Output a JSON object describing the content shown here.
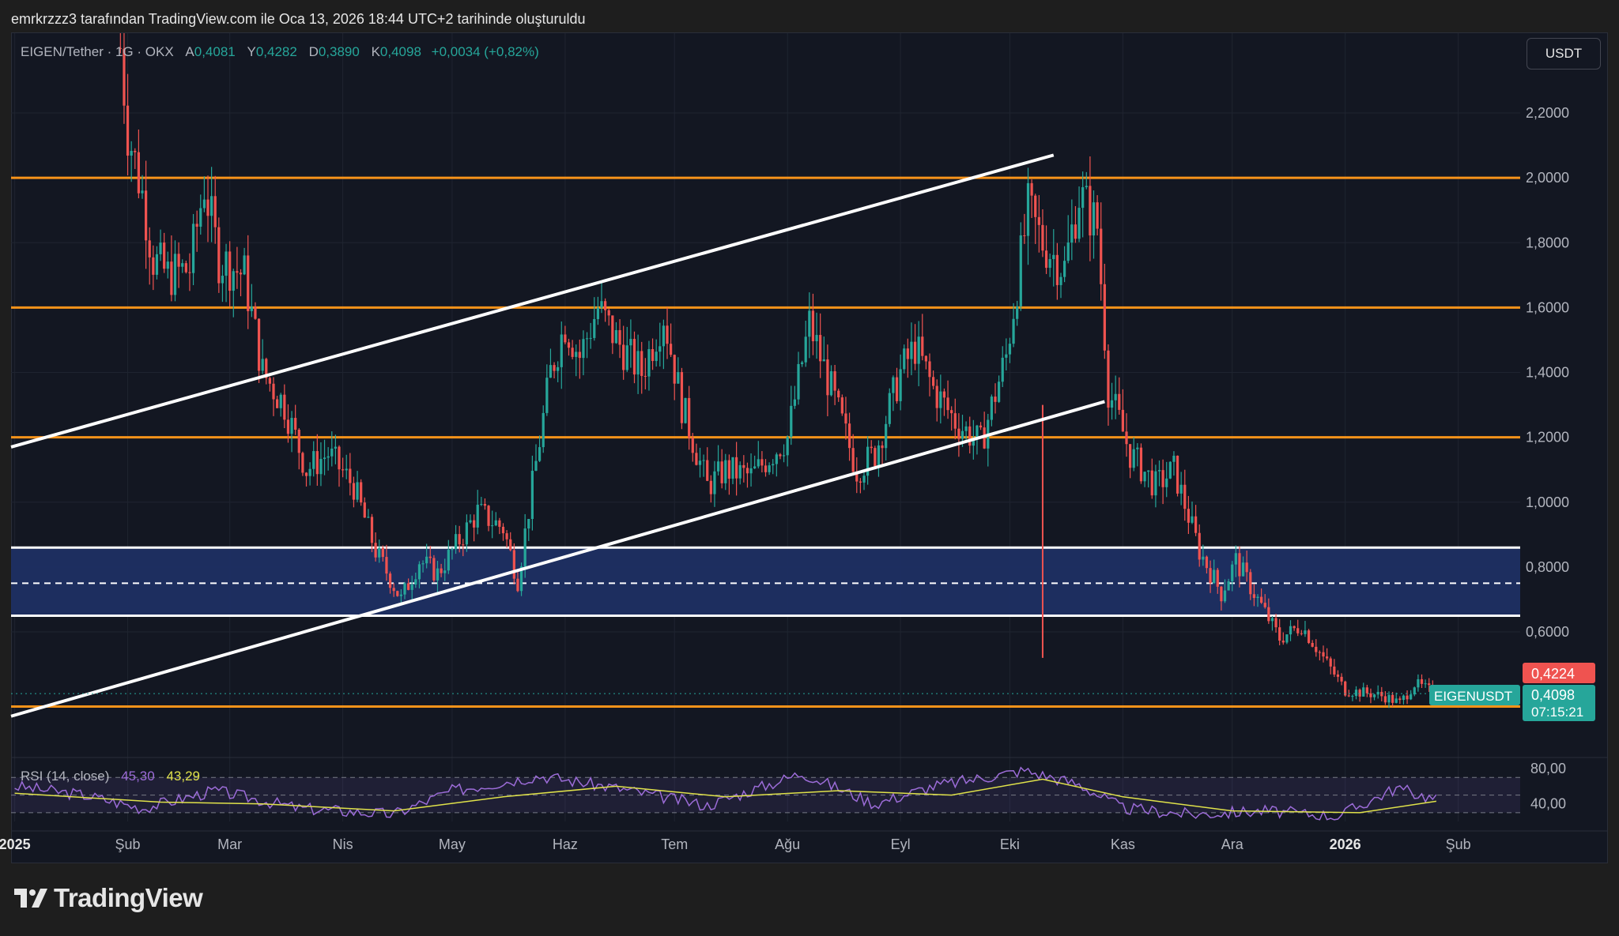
{
  "header": {
    "text": "emrkrzzz3 tarafından TradingView.com ile Oca 13, 2026 18:44 UTC+2 tarihinde oluşturuldu"
  },
  "legend": {
    "symbol": "EIGEN/Tether · 1G · OKX",
    "open_label": "A",
    "open": "0,4081",
    "high_label": "Y",
    "high": "0,4282",
    "low_label": "D",
    "low": "0,3890",
    "close_label": "K",
    "close": "0,4098",
    "change": "+0,0034 (+0,82%)"
  },
  "currency_button": "USDT",
  "rsi_legend": {
    "label": "RSI (14, close)",
    "rsi": "45,30",
    "ma": "43,29"
  },
  "price_tags": {
    "high_tag": "0,4224",
    "last_price": "0,4098",
    "countdown": "07:15:21",
    "symbol_tag": "EIGENUSDT"
  },
  "brand": {
    "logo_text": "TradingView"
  },
  "colors": {
    "up": "#26a69a",
    "down": "#ef5350",
    "horizontal_level": "#f7931a",
    "channel": "#ffffff",
    "zone": "#1e2f63",
    "rsi": "#9c6cd8",
    "rsi_ma": "#e0e24a"
  },
  "chart_data": {
    "type": "candlestick",
    "title": "",
    "xlabel": "",
    "ylabel": "",
    "ylim": [
      0.1,
      2.4
    ],
    "y_ticks": [
      "2,2000",
      "2,0000",
      "1,8000",
      "1,6000",
      "1,4000",
      "1,2000",
      "1,0000",
      "0,8000",
      "0,6000"
    ],
    "y_tick_values": [
      2.2,
      2.0,
      1.8,
      1.6,
      1.4,
      1.2,
      1.0,
      0.8,
      0.6
    ],
    "x_ticks": [
      "2025",
      "Şub",
      "Mar",
      "Nis",
      "May",
      "Haz",
      "Tem",
      "Ağu",
      "Eyl",
      "Eki",
      "Kas",
      "Ara",
      "2026",
      "Şub"
    ],
    "x_tick_dates": [
      "2025-01-01",
      "2025-02-01",
      "2025-03-01",
      "2025-04-01",
      "2025-05-01",
      "2025-06-01",
      "2025-07-01",
      "2025-08-01",
      "2025-09-01",
      "2025-10-01",
      "2025-11-01",
      "2025-12-01",
      "2026-01-01",
      "2026-02-01"
    ],
    "x_range": [
      "2024-12-31",
      "2026-02-18"
    ],
    "horizontal_levels": [
      2.0,
      1.6,
      1.2,
      0.37
    ],
    "zone": {
      "top": 0.86,
      "bottom": 0.65,
      "mid": 0.75
    },
    "trendlines": [
      {
        "from": [
          "2024-12-31",
          1.17
        ],
        "to": [
          "2025-10-13",
          2.07
        ]
      },
      {
        "from": [
          "2024-12-31",
          0.34
        ],
        "to": [
          "2025-10-27",
          1.31
        ]
      }
    ],
    "price_path": [
      [
        "2025-01-30",
        2.4
      ],
      [
        "2025-02-01",
        2.15
      ],
      [
        "2025-02-05",
        1.95
      ],
      [
        "2025-02-08",
        1.75
      ],
      [
        "2025-02-12",
        1.7
      ],
      [
        "2025-02-18",
        1.72
      ],
      [
        "2025-02-22",
        1.98
      ],
      [
        "2025-02-26",
        1.75
      ],
      [
        "2025-03-05",
        1.7
      ],
      [
        "2025-03-10",
        1.4
      ],
      [
        "2025-03-16",
        1.3
      ],
      [
        "2025-03-22",
        1.1
      ],
      [
        "2025-03-28",
        1.15
      ],
      [
        "2025-04-04",
        1.05
      ],
      [
        "2025-04-10",
        0.85
      ],
      [
        "2025-04-17",
        0.7
      ],
      [
        "2025-04-22",
        0.82
      ],
      [
        "2025-04-27",
        0.78
      ],
      [
        "2025-05-04",
        0.9
      ],
      [
        "2025-05-08",
        0.97
      ],
      [
        "2025-05-15",
        0.92
      ],
      [
        "2025-05-19",
        0.76
      ],
      [
        "2025-05-23",
        1.05
      ],
      [
        "2025-05-28",
        1.4
      ],
      [
        "2025-06-01",
        1.55
      ],
      [
        "2025-06-05",
        1.45
      ],
      [
        "2025-06-10",
        1.6
      ],
      [
        "2025-06-15",
        1.5
      ],
      [
        "2025-06-22",
        1.4
      ],
      [
        "2025-06-28",
        1.58
      ],
      [
        "2025-07-03",
        1.3
      ],
      [
        "2025-07-10",
        1.05
      ],
      [
        "2025-07-15",
        1.1
      ],
      [
        "2025-07-22",
        1.08
      ],
      [
        "2025-08-01",
        1.2
      ],
      [
        "2025-08-07",
        1.55
      ],
      [
        "2025-08-12",
        1.38
      ],
      [
        "2025-08-20",
        1.1
      ],
      [
        "2025-08-25",
        1.15
      ],
      [
        "2025-09-01",
        1.4
      ],
      [
        "2025-09-05",
        1.48
      ],
      [
        "2025-09-10",
        1.35
      ],
      [
        "2025-09-16",
        1.25
      ],
      [
        "2025-09-23",
        1.18
      ],
      [
        "2025-09-30",
        1.45
      ],
      [
        "2025-10-06",
        1.9
      ],
      [
        "2025-10-10",
        1.8
      ],
      [
        "2025-10-16",
        1.72
      ],
      [
        "2025-10-20",
        1.95
      ],
      [
        "2025-10-25",
        1.85
      ],
      [
        "2025-10-28",
        1.35
      ],
      [
        "2025-11-03",
        1.15
      ],
      [
        "2025-11-10",
        1.05
      ],
      [
        "2025-11-15",
        1.1
      ],
      [
        "2025-11-22",
        0.85
      ],
      [
        "2025-11-28",
        0.72
      ],
      [
        "2025-12-02",
        0.82
      ],
      [
        "2025-12-08",
        0.7
      ],
      [
        "2025-12-14",
        0.58
      ],
      [
        "2025-12-20",
        0.62
      ],
      [
        "2025-12-26",
        0.52
      ],
      [
        "2026-01-01",
        0.42
      ],
      [
        "2026-01-08",
        0.41
      ],
      [
        "2026-01-12",
        0.4
      ],
      [
        "2026-01-16",
        0.38
      ],
      [
        "2026-01-20",
        0.44
      ],
      [
        "2026-01-24",
        0.42
      ],
      [
        "2026-01-26",
        0.41
      ]
    ],
    "rsi": {
      "ylim": [
        20,
        90
      ],
      "y_ticks": [
        "80,00",
        "40,00"
      ],
      "y_tick_values": [
        80,
        40
      ],
      "bands": [
        70,
        50,
        30
      ],
      "rsi_path": [
        [
          "2025-01-01",
          60
        ],
        [
          "2025-01-20",
          50
        ],
        [
          "2025-02-05",
          35
        ],
        [
          "2025-02-25",
          55
        ],
        [
          "2025-03-20",
          35
        ],
        [
          "2025-04-15",
          28
        ],
        [
          "2025-05-01",
          55
        ],
        [
          "2025-05-25",
          72
        ],
        [
          "2025-06-15",
          58
        ],
        [
          "2025-07-10",
          38
        ],
        [
          "2025-08-05",
          75
        ],
        [
          "2025-08-25",
          40
        ],
        [
          "2025-09-10",
          60
        ],
        [
          "2025-10-05",
          78
        ],
        [
          "2025-10-20",
          62
        ],
        [
          "2025-11-01",
          35
        ],
        [
          "2025-11-20",
          28
        ],
        [
          "2025-12-10",
          32
        ],
        [
          "2025-12-30",
          26
        ],
        [
          "2026-01-15",
          58
        ],
        [
          "2026-01-26",
          45
        ]
      ],
      "ma_path": [
        [
          "2025-01-01",
          52
        ],
        [
          "2025-02-10",
          42
        ],
        [
          "2025-03-10",
          40
        ],
        [
          "2025-04-15",
          32
        ],
        [
          "2025-05-15",
          48
        ],
        [
          "2025-06-15",
          60
        ],
        [
          "2025-07-15",
          48
        ],
        [
          "2025-08-15",
          55
        ],
        [
          "2025-09-15",
          50
        ],
        [
          "2025-10-10",
          68
        ],
        [
          "2025-11-01",
          48
        ],
        [
          "2025-12-01",
          32
        ],
        [
          "2026-01-05",
          30
        ],
        [
          "2026-01-26",
          43
        ]
      ]
    }
  }
}
